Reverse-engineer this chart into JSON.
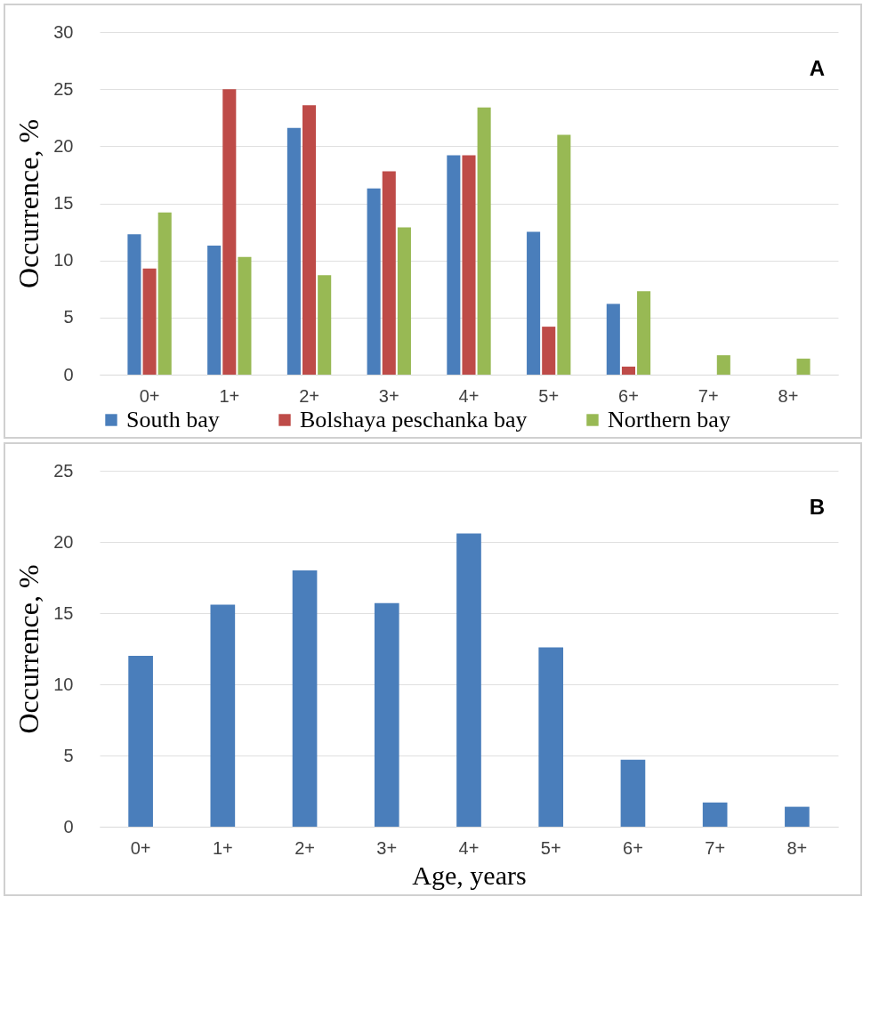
{
  "chart_data": [
    {
      "type": "bar",
      "ylabel": "Occurrence, %",
      "categories": [
        "0+",
        "1+",
        "2+",
        "3+",
        "4+",
        "5+",
        "6+",
        "7+",
        "8+"
      ],
      "series": [
        {
          "name": "South bay",
          "color": "#4a7ebb",
          "values": [
            12.3,
            11.3,
            21.6,
            16.3,
            19.2,
            12.5,
            6.2,
            null,
            null
          ]
        },
        {
          "name": "Bolshaya peschanka bay",
          "color": "#be4b48",
          "values": [
            9.3,
            25.0,
            23.6,
            17.8,
            19.2,
            4.2,
            0.7,
            null,
            null
          ]
        },
        {
          "name": "Northern bay",
          "color": "#98b954",
          "values": [
            14.2,
            10.3,
            8.7,
            12.9,
            23.4,
            21.0,
            7.3,
            1.7,
            1.4
          ]
        }
      ],
      "ylim": [
        0,
        30
      ],
      "yticks": [
        0,
        5,
        10,
        15,
        20,
        25,
        30
      ],
      "grid": "y",
      "legend": "bottom",
      "annotations": [
        "A"
      ]
    },
    {
      "type": "bar",
      "ylabel": "Occurrence, %",
      "xlabel": "Age, years",
      "categories": [
        "0+",
        "1+",
        "2+",
        "3+",
        "4+",
        "5+",
        "6+",
        "7+",
        "8+"
      ],
      "values": [
        12.0,
        15.6,
        18.0,
        15.7,
        20.6,
        12.6,
        4.7,
        1.7,
        1.4
      ],
      "color": "#4a7ebb",
      "ylim": [
        0,
        25
      ],
      "yticks": [
        0,
        5,
        10,
        15,
        20,
        25
      ],
      "grid": "y",
      "annotations": [
        "B"
      ]
    }
  ]
}
